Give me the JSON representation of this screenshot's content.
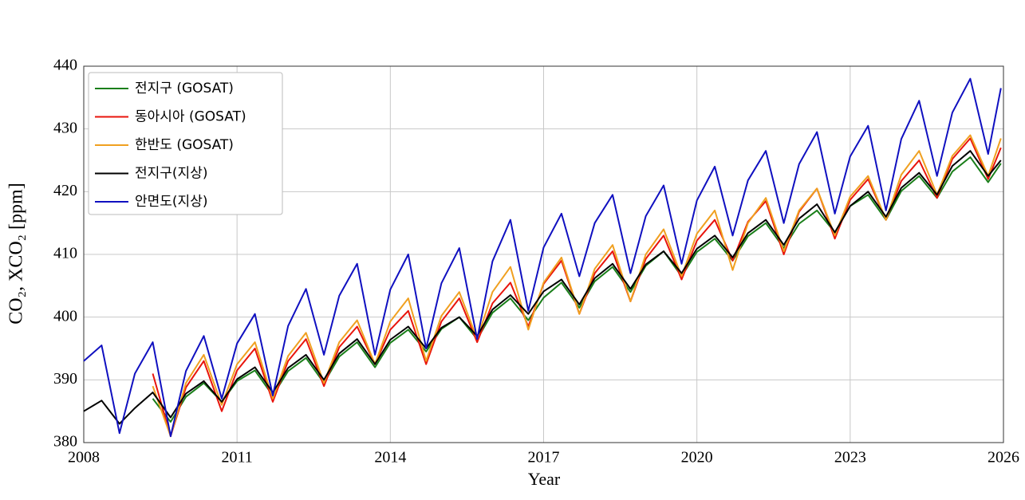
{
  "chart_data": {
    "type": "line",
    "xlabel": "Year",
    "ylabel": "CO₂, XCO₂ [ppm]",
    "xlim": [
      2008,
      2026
    ],
    "xticks": [
      2008,
      2011,
      2014,
      2017,
      2020,
      2023,
      2026
    ],
    "ylim": [
      380,
      440
    ],
    "yticks": [
      380,
      390,
      400,
      410,
      420,
      430,
      440
    ],
    "grid": true,
    "legend": "upper left",
    "x": [
      2008.0,
      2008.35,
      2008.7,
      2009.0,
      2009.35,
      2009.7,
      2010.0,
      2010.35,
      2010.7,
      2011.0,
      2011.35,
      2011.7,
      2012.0,
      2012.35,
      2012.7,
      2013.0,
      2013.35,
      2013.7,
      2014.0,
      2014.35,
      2014.7,
      2015.0,
      2015.35,
      2015.7,
      2016.0,
      2016.35,
      2016.7,
      2017.0,
      2017.35,
      2017.7,
      2018.0,
      2018.35,
      2018.7,
      2019.0,
      2019.35,
      2019.7,
      2020.0,
      2020.35,
      2020.7,
      2021.0,
      2021.35,
      2021.7,
      2022.0,
      2022.35,
      2022.7,
      2023.0,
      2023.35,
      2023.7,
      2024.0,
      2024.35,
      2024.7,
      2025.0,
      2025.35,
      2025.7,
      2025.95
    ],
    "series": [
      {
        "name": "전지구 (GOSAT)",
        "color": "#1a7f1a",
        "values": [
          null,
          null,
          null,
          null,
          387,
          383.3,
          387.3,
          389.5,
          386.5,
          389.8,
          391.5,
          387.5,
          391.4,
          393.5,
          389.5,
          393.7,
          396,
          392,
          395.9,
          398,
          394.5,
          398.1,
          400,
          396.5,
          400.7,
          403,
          399.5,
          403.1,
          405.5,
          401.5,
          405.7,
          408,
          404,
          408.2,
          410.5,
          406.5,
          410.4,
          412.5,
          409,
          412.9,
          415,
          411,
          414.9,
          417,
          413.5,
          417.7,
          419.5,
          415.5,
          420.1,
          422.5,
          419,
          423.2,
          425.5,
          421.5,
          424.5
        ]
      },
      {
        "name": "동아시아 (GOSAT)",
        "color": "#e8140c",
        "values": [
          null,
          null,
          null,
          null,
          391,
          381,
          388.8,
          393,
          385,
          391.5,
          395,
          386.5,
          393,
          396.5,
          389,
          395.2,
          398.5,
          392.5,
          398,
          401,
          392.5,
          399.3,
          403,
          396,
          402.2,
          405.5,
          398.5,
          405.3,
          409,
          400.5,
          407,
          410.5,
          402.5,
          409.3,
          413,
          406,
          412.2,
          415.5,
          409,
          415.2,
          418.5,
          410,
          416.8,
          420.5,
          412.5,
          418.7,
          422,
          415.5,
          421.7,
          425,
          419,
          425.2,
          428.5,
          422,
          427
        ]
      },
      {
        "name": "한반도 (GOSAT)",
        "color": "#f0a020",
        "values": [
          null,
          null,
          null,
          null,
          389,
          381,
          389.5,
          394,
          386,
          392.5,
          396,
          387,
          393.8,
          397.5,
          389.5,
          396,
          399.5,
          392.5,
          399.3,
          403,
          393,
          400.2,
          404,
          396.5,
          404,
          408,
          398,
          405.5,
          409.5,
          400.5,
          407.7,
          411.5,
          402.5,
          410,
          414,
          406.5,
          413.3,
          417,
          407.5,
          415,
          419,
          410.5,
          417,
          420.5,
          413,
          419.2,
          422.5,
          415.5,
          422.7,
          426.5,
          419.5,
          425.7,
          429,
          422.5,
          428.5
        ]
      },
      {
        "name": "전지구(지상)",
        "color": "#000000",
        "values": [
          385,
          386.7,
          383,
          385.5,
          388,
          384,
          387.8,
          389.8,
          386.5,
          390.1,
          392,
          388,
          391.9,
          394,
          390,
          394.2,
          396.5,
          392.5,
          396.4,
          398.5,
          395,
          398.3,
          400,
          397,
          401.2,
          403.5,
          400.5,
          404.1,
          406,
          402,
          406.2,
          408.5,
          404.5,
          408.4,
          410.5,
          407,
          410.9,
          413,
          409.5,
          413.4,
          415.5,
          411.5,
          415.7,
          418,
          413.5,
          417.7,
          420,
          416,
          420.6,
          423,
          419.5,
          424.1,
          426.5,
          422.5,
          425
        ]
      },
      {
        "name": "안면도(지상)",
        "color": "#1010c0",
        "values": [
          393,
          395.5,
          381.5,
          391,
          396,
          381,
          391.4,
          397,
          387,
          395.8,
          400.5,
          387.5,
          398.6,
          404.5,
          394,
          403.4,
          408.5,
          394,
          404.4,
          410,
          395,
          405.4,
          411,
          396.5,
          408.9,
          415.5,
          401,
          411.1,
          416.5,
          406.5,
          415,
          419.5,
          407,
          416.1,
          421,
          408.5,
          418.6,
          424,
          413,
          421.8,
          426.5,
          415,
          424.4,
          429.5,
          416.5,
          425.6,
          430.5,
          417,
          428.4,
          434.5,
          422.5,
          432.6,
          438,
          426,
          436.5
        ]
      }
    ]
  }
}
